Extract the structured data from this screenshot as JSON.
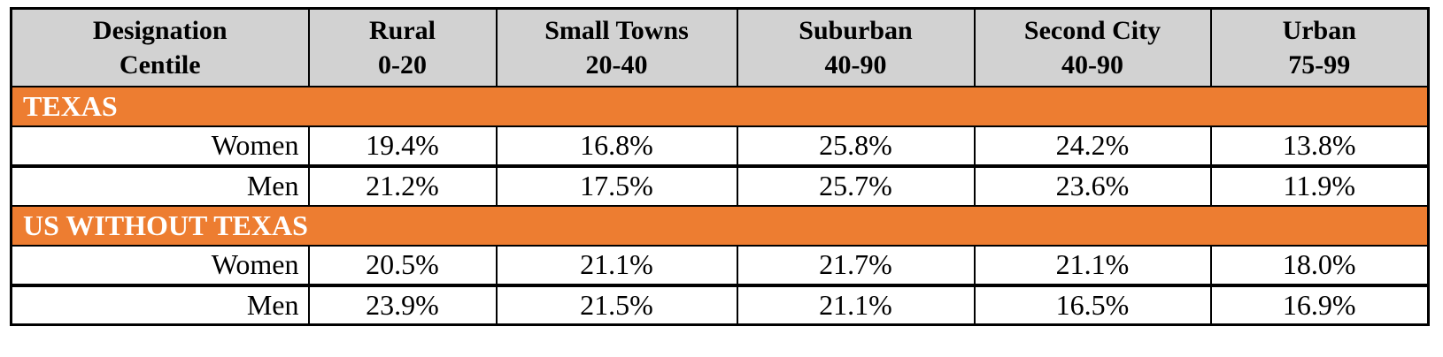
{
  "colors": {
    "accent_orange": "#ED7D31",
    "header_gray": "#D2D2D2"
  },
  "table": {
    "header": {
      "columns": [
        {
          "line1": "Designation",
          "line2": "Centile"
        },
        {
          "line1": "Rural",
          "line2": "0-20"
        },
        {
          "line1": "Small Towns",
          "line2": "20-40"
        },
        {
          "line1": "Suburban",
          "line2": "40-90"
        },
        {
          "line1": "Second City",
          "line2": "40-90"
        },
        {
          "line1": "Urban",
          "line2": "75-99"
        }
      ]
    },
    "sections": [
      {
        "title": "TEXAS",
        "rows": [
          {
            "label": "Women",
            "values": [
              "19.4%",
              "16.8%",
              "25.8%",
              "24.2%",
              "13.8%"
            ]
          },
          {
            "label": "Men",
            "values": [
              "21.2%",
              "17.5%",
              "25.7%",
              "23.6%",
              "11.9%"
            ]
          }
        ]
      },
      {
        "title": "US WITHOUT TEXAS",
        "rows": [
          {
            "label": "Women",
            "values": [
              "20.5%",
              "21.1%",
              "21.7%",
              "21.1%",
              "18.0%"
            ]
          },
          {
            "label": "Men",
            "values": [
              "23.9%",
              "21.5%",
              "21.1%",
              "16.5%",
              "16.9%"
            ]
          }
        ]
      }
    ]
  },
  "chart_data": {
    "type": "table",
    "title": "",
    "columns": [
      "Designation Centile",
      "Rural 0-20",
      "Small Towns 20-40",
      "Suburban 40-90",
      "Second City 40-90",
      "Urban 75-99"
    ],
    "units": "percent",
    "sections": [
      {
        "title": "TEXAS",
        "rows": [
          {
            "label": "Women",
            "values": [
              19.4,
              16.8,
              25.8,
              24.2,
              13.8
            ]
          },
          {
            "label": "Men",
            "values": [
              21.2,
              17.5,
              25.7,
              23.6,
              11.9
            ]
          }
        ]
      },
      {
        "title": "US WITHOUT TEXAS",
        "rows": [
          {
            "label": "Women",
            "values": [
              20.5,
              21.1,
              21.7,
              21.1,
              18.0
            ]
          },
          {
            "label": "Men",
            "values": [
              23.9,
              21.5,
              21.1,
              16.5,
              16.9
            ]
          }
        ]
      }
    ]
  }
}
